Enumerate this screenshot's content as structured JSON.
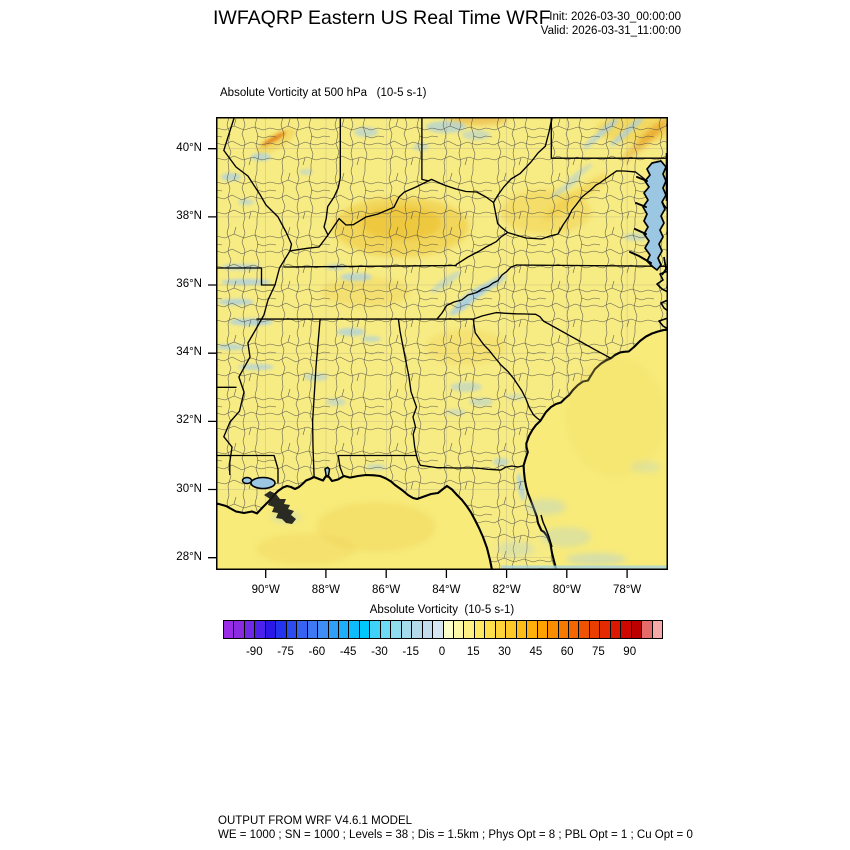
{
  "header": {
    "title": "IWFAQRP Eastern US Real Time WRF",
    "init_line": "Init: 2026-03-30_00:00:00",
    "valid_line": "Valid: 2026-03-31_11:00:00"
  },
  "map": {
    "subtitle": "Absolute Vorticity at 500 hPa   (10-5 s-1)",
    "lat_labels": [
      "40°N",
      "38°N",
      "36°N",
      "34°N",
      "32°N",
      "30°N",
      "28°N"
    ],
    "lon_labels": [
      "90°W",
      "88°W",
      "86°W",
      "84°W",
      "82°W",
      "80°W",
      "78°W"
    ]
  },
  "colorbar": {
    "label": "Absolute Vorticity  (10-5 s-1)",
    "tick_labels": [
      "-90",
      "-75",
      "-60",
      "-45",
      "-30",
      "-15",
      "0",
      "15",
      "30",
      "45",
      "60",
      "75",
      "90"
    ],
    "min": -105,
    "max": 105,
    "step": 5,
    "colors": [
      "#9A2CE8",
      "#8A2BE2",
      "#7029E8",
      "#4B21EB",
      "#2A17E8",
      "#2433EE",
      "#2C4CF0",
      "#3663F2",
      "#3F78F3",
      "#3F8EF5",
      "#2F9FF7",
      "#1FAEF9",
      "#0FBCFB",
      "#00C8FD",
      "#3ED2F8",
      "#6CDAF4",
      "#8EDEF0",
      "#A4DBED",
      "#B4D9EA",
      "#C4DDEE",
      "#D5E5F2",
      "#FFFFC9",
      "#FFF8A6",
      "#FFF184",
      "#FFE962",
      "#FFDF4A",
      "#FFD43A",
      "#FFC92A",
      "#FFBD1A",
      "#FFB00A",
      "#FFA200",
      "#FB8E00",
      "#F77A00",
      "#F36600",
      "#EF5200",
      "#EA3E00",
      "#E42A00",
      "#DB1800",
      "#CE0800",
      "#BC0000",
      "#E56A6A",
      "#F7A8A8"
    ]
  },
  "map_colors": {
    "land": "#F7EB84",
    "ocean": "#F8EB7A",
    "high_vorticity_patch": "#EFC83E",
    "negative_vorticity_patch": "#A5CEE8",
    "water_body": "#9CC7E2",
    "county_line": "#474740",
    "state_line": "#000000"
  },
  "footer": {
    "line1": "OUTPUT FROM WRF V4.6.1 MODEL",
    "line2": "WE = 1000 ; SN = 1000 ; Levels = 38 ; Dis = 1.5km ; Phys Opt = 8 ; PBL Opt = 1 ; Cu Opt = 0"
  }
}
